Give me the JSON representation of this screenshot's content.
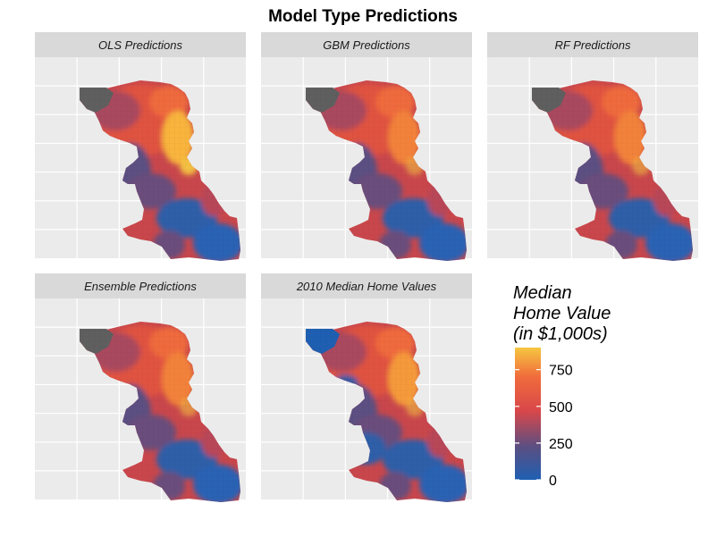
{
  "figure": {
    "title": "Model Type Predictions"
  },
  "panels": [
    {
      "label": "OLS Predictions",
      "variant": 0
    },
    {
      "label": "GBM Predictions",
      "variant": 1
    },
    {
      "label": "RF Predictions",
      "variant": 2
    },
    {
      "label": "Ensemble Predictions",
      "variant": 3
    },
    {
      "label": "2010 Median Home Values",
      "variant": 4
    }
  ],
  "legend": {
    "title_lines": [
      "Median",
      "Home Value",
      "(in $1,000s)"
    ],
    "breaks": [
      {
        "value": 750,
        "label": "750"
      },
      {
        "value": 500,
        "label": "500"
      },
      {
        "value": 250,
        "label": "250"
      },
      {
        "value": 0,
        "label": "0"
      }
    ],
    "scale_min": 0,
    "scale_max": 900,
    "colors": {
      "low": "#1f5fb2",
      "lowmid": "#5b4f82",
      "mid": "#d8474a",
      "highmid": "#f06c3c",
      "high": "#f6c640"
    }
  },
  "theme": {
    "panel_background": "#ebebeb",
    "strip_background": "#d9d9d9",
    "grid_color": "#ffffff",
    "missing_color": "#5f5f5f",
    "lake_blue_in_actuals": "#1f5fb2"
  }
}
